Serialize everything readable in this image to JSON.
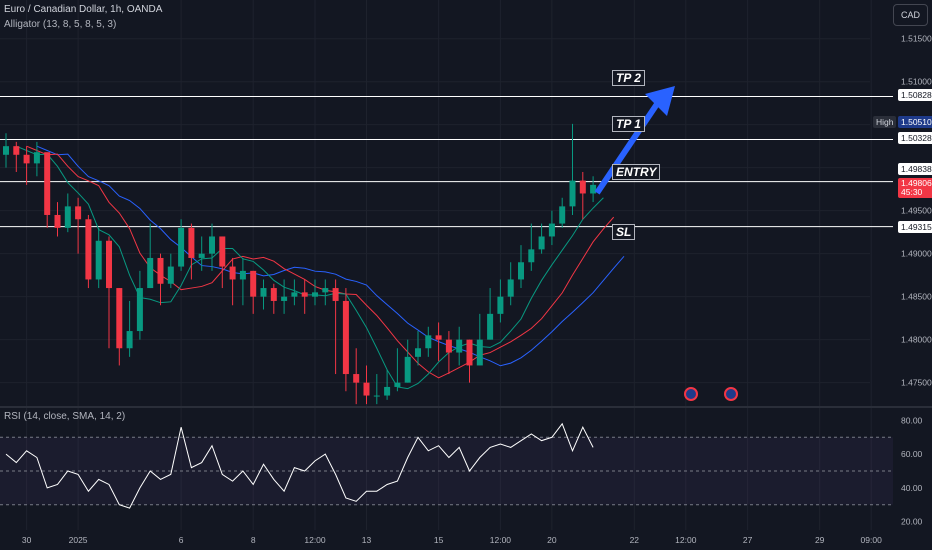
{
  "header": {
    "title": "Euro / Canadian Dollar, 1h, OANDA",
    "indicator": "Alligator (13, 8, 5, 8, 5, 3)",
    "currency_button": "CAD",
    "rsi_label": "RSI (14, close, SMA, 14, 2)"
  },
  "annotations": {
    "tp2": "TP 2",
    "tp1": "TP 1",
    "entry": "ENTRY",
    "sl": "SL"
  },
  "price_labels": {
    "tp2": "1.50828",
    "high_tag": "High",
    "high": "1.50510",
    "tp1": "1.50328",
    "entry": "1.49838",
    "last": "1.49806",
    "countdown": "45:30",
    "sl": "1.49315"
  },
  "colors": {
    "background": "#131722",
    "up_candle": "#089981",
    "down_candle": "#f23645",
    "jaw": "#2962ff",
    "teeth": "#f23645",
    "lips": "#089981",
    "arrow": "#2962ff",
    "rsi_line": "#ffffff",
    "rsi_band": "#7e57c2"
  },
  "chart_data": {
    "type": "candlestick",
    "symbol": "EUR/CAD",
    "timeframe": "1h",
    "y_ticks": [
      1.515,
      1.51,
      1.505,
      1.5,
      1.495,
      1.49,
      1.485,
      1.48,
      1.475
    ],
    "y_tick_labels": [
      "1.51500",
      "1.51000",
      "1.50500",
      "1.50000",
      "1.49500",
      "1.49000",
      "1.48500",
      "1.48000",
      "1.47500"
    ],
    "ylim": [
      1.4724,
      1.5195
    ],
    "x_ticks": [
      {
        "label": "30",
        "index": 2
      },
      {
        "label": "2025",
        "index": 7
      },
      {
        "label": "6",
        "index": 17
      },
      {
        "label": "8",
        "index": 24
      },
      {
        "label": "12:00",
        "index": 30
      },
      {
        "label": "13",
        "index": 35
      },
      {
        "label": "15",
        "index": 42
      },
      {
        "label": "12:00",
        "index": 48
      },
      {
        "label": "20",
        "index": 53
      },
      {
        "label": "22",
        "index": 61
      },
      {
        "label": "12:00",
        "index": 66
      },
      {
        "label": "27",
        "index": 72
      },
      {
        "label": "29",
        "index": 79
      },
      {
        "label": "09:00",
        "index": 84
      }
    ],
    "closes": [
      1.5025,
      1.5015,
      1.5005,
      1.5018,
      1.4945,
      1.493,
      1.4955,
      1.494,
      1.487,
      1.4915,
      1.486,
      1.479,
      1.481,
      1.486,
      1.4895,
      1.4865,
      1.4885,
      1.493,
      1.4895,
      1.49,
      1.492,
      1.4885,
      1.487,
      1.488,
      1.485,
      1.486,
      1.4845,
      1.485,
      1.4855,
      1.485,
      1.4855,
      1.486,
      1.4845,
      1.476,
      1.475,
      1.4735,
      1.4735,
      1.4745,
      1.475,
      1.478,
      1.479,
      1.4805,
      1.48,
      1.4785,
      1.48,
      1.477,
      1.48,
      1.483,
      1.485,
      1.487,
      1.489,
      1.4905,
      1.492,
      1.4935,
      1.4955,
      1.4985,
      1.497,
      1.498
    ],
    "highs": [
      1.504,
      1.503,
      1.5025,
      1.503,
      1.5,
      1.496,
      1.497,
      1.4965,
      1.4945,
      1.493,
      1.492,
      1.486,
      1.4845,
      1.488,
      1.4935,
      1.49,
      1.49,
      1.494,
      1.4935,
      1.492,
      1.4935,
      1.492,
      1.4895,
      1.4895,
      1.488,
      1.487,
      1.4865,
      1.487,
      1.487,
      1.487,
      1.487,
      1.487,
      1.487,
      1.486,
      1.479,
      1.477,
      1.476,
      1.4765,
      1.479,
      1.48,
      1.481,
      1.4815,
      1.482,
      1.481,
      1.4815,
      1.48,
      1.483,
      1.486,
      1.487,
      1.489,
      1.491,
      1.4935,
      1.4935,
      1.495,
      1.4965,
      1.5051,
      1.4995,
      1.499
    ],
    "lows": [
      1.5,
      1.4995,
      1.498,
      1.499,
      1.493,
      1.492,
      1.4925,
      1.49,
      1.486,
      1.486,
      1.479,
      1.477,
      1.478,
      1.48,
      1.486,
      1.484,
      1.486,
      1.488,
      1.487,
      1.488,
      1.488,
      1.486,
      1.484,
      1.484,
      1.483,
      1.4835,
      1.483,
      1.483,
      1.484,
      1.483,
      1.484,
      1.484,
      1.476,
      1.474,
      1.4725,
      1.4725,
      1.4725,
      1.473,
      1.474,
      1.475,
      1.477,
      1.478,
      1.4775,
      1.476,
      1.477,
      1.475,
      1.477,
      1.48,
      1.482,
      1.484,
      1.486,
      1.488,
      1.49,
      1.491,
      1.493,
      1.4945,
      1.494,
      1.496
    ],
    "levels": [
      {
        "name": "TP 2",
        "value": 1.50828
      },
      {
        "name": "TP 1",
        "value": 1.50328
      },
      {
        "name": "ENTRY",
        "value": 1.49838
      },
      {
        "name": "SL",
        "value": 1.49315
      }
    ],
    "rsi": {
      "y_ticks": [
        80,
        60,
        40,
        20
      ],
      "y_tick_labels": [
        "80.00",
        "60.00",
        "40.00",
        "20.00"
      ],
      "bands": [
        70,
        50,
        30
      ],
      "values": [
        60,
        55,
        62,
        58,
        40,
        42,
        50,
        48,
        38,
        45,
        42,
        30,
        28,
        40,
        50,
        45,
        48,
        76,
        52,
        55,
        65,
        48,
        44,
        50,
        42,
        54,
        45,
        38,
        52,
        50,
        56,
        60,
        48,
        34,
        32,
        38,
        38,
        42,
        44,
        58,
        70,
        62,
        65,
        58,
        64,
        50,
        58,
        64,
        66,
        64,
        68,
        72,
        68,
        70,
        78,
        62,
        76,
        64
      ]
    }
  }
}
